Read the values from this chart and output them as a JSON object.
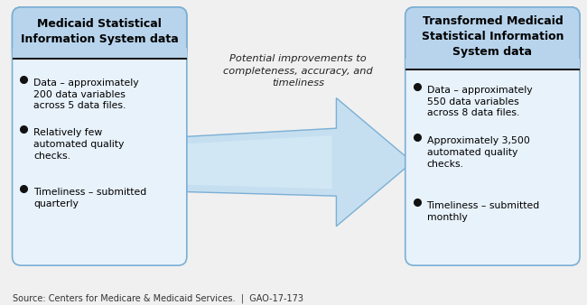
{
  "bg_color": "#f0f0f0",
  "box_bg": "#f5f9ff",
  "box_fill_light": "#e8f2fb",
  "box_edge": "#7bafd4",
  "header_fill": "#b8d4ed",
  "sep_line_color": "#1a1a1a",
  "title_color": "#000000",
  "bullet_color": "#000000",
  "arrow_fill": "#c5dff0",
  "arrow_fill_light": "#dceef8",
  "arrow_edge": "#7bafd4",
  "text_color": "#333333",
  "left_title_line1": "Medicaid Statistical",
  "left_title_line2": "Information System data",
  "right_title_line1": "Transformed Medicaid",
  "right_title_line2": "Statistical Information",
  "right_title_line3": "System data",
  "arrow_label_line1": "Potential improvements to",
  "arrow_label_line2": "completeness, accuracy, and",
  "arrow_label_line3": "timeliness",
  "left_bullets": [
    "Data – approximately\n200 data variables\nacross 5 data files.",
    "Relatively few\nautomated quality\nchecks.",
    "Timeliness – submitted\nquarterly"
  ],
  "right_bullets": [
    "Data – approximately\n550 data variables\nacross 8 data files.",
    "Approximately 3,500\nautomated quality\nchecks.",
    "Timeliness – submitted\nmonthly"
  ],
  "source_text": "Source: Centers for Medicare & Medicaid Services.  |  GAO-17-173"
}
